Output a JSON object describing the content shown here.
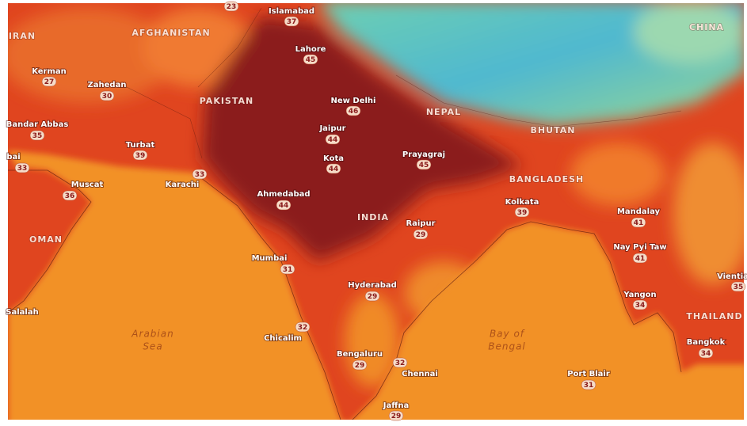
{
  "countries": [
    {
      "label": "IRAN"
    },
    {
      "label": "AFGHANISTAN"
    },
    {
      "label": "PAKISTAN"
    },
    {
      "label": "NEPAL"
    },
    {
      "label": "BHUTAN"
    },
    {
      "label": "BANGLADESH"
    },
    {
      "label": "INDIA"
    },
    {
      "label": "OMAN"
    },
    {
      "label": "CHINA"
    },
    {
      "label": "THAILAND"
    }
  ],
  "seas": [
    {
      "lines": [
        "Arabian",
        "Sea"
      ]
    },
    {
      "lines": [
        "Bay of",
        "Bengal"
      ]
    }
  ],
  "cities": [
    {
      "temp": 23
    },
    {
      "name": "Islamabad",
      "temp": 37
    },
    {
      "name": "Lahore",
      "temp": 45
    },
    {
      "name": "New Delhi",
      "temp": 46
    },
    {
      "name": "Jaipur",
      "temp": 44
    },
    {
      "name": "Kota",
      "temp": 44
    },
    {
      "name": "Prayagraj",
      "temp": 45
    },
    {
      "name": "Ahmedabad",
      "temp": 44
    },
    {
      "name": "Kolkata",
      "temp": 39
    },
    {
      "name": "Raipur",
      "temp": 29
    },
    {
      "name": "Mumbai",
      "temp": 31
    },
    {
      "name": "Hyderabad",
      "temp": 29
    },
    {
      "name": "Chicalim",
      "temp": 32
    },
    {
      "name": "Bengaluru",
      "temp": 29
    },
    {
      "name": "Chennai",
      "temp": 32
    },
    {
      "name": "Port Blair",
      "temp": 31
    },
    {
      "name": "Jaffna",
      "temp": 29
    },
    {
      "name": "Kerman",
      "temp": 27
    },
    {
      "name": "Zahedan",
      "temp": 30
    },
    {
      "name": "Bandar Abbas",
      "temp": 35
    },
    {
      "name": "Turbat",
      "temp": 39
    },
    {
      "name": "Karachi",
      "temp": 33
    },
    {
      "name": "Muscat",
      "temp": 36
    },
    {
      "name": "Mandalay",
      "temp": 41
    },
    {
      "name": "Nay Pyi Taw",
      "temp": 41
    },
    {
      "name": "Yangon",
      "temp": 34
    },
    {
      "name": "Bangkok",
      "temp": 34
    },
    {
      "name": "Vientia",
      "temp": 35
    },
    {
      "name": "Salalah"
    },
    {
      "name": "bai",
      "temp": 33
    }
  ]
}
